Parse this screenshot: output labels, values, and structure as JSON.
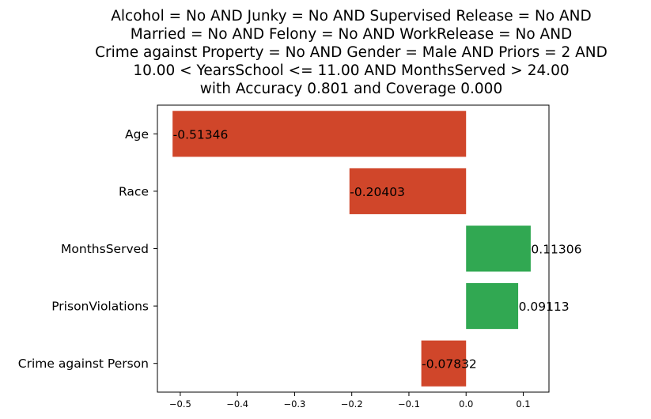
{
  "chart_data": {
    "type": "bar",
    "orientation": "horizontal",
    "title_lines": [
      "Alcohol = No AND Junky = No AND Supervised Release = No AND",
      "Married = No AND Felony = No AND WorkRelease = No AND",
      "Crime against Property = No AND Gender = Male AND Priors = 2 AND",
      "10.00 < YearsSchool <= 11.00 AND MonthsServed > 24.00",
      "with Accuracy 0.801 and Coverage 0.000"
    ],
    "categories": [
      "Age",
      "Race",
      "MonthsServed",
      "PrisonViolations",
      "Crime against Person"
    ],
    "values": [
      -0.51346,
      -0.20403,
      0.11306,
      0.09113,
      -0.07832
    ],
    "value_labels": [
      "-0.51346",
      "-0.20403",
      "0.11306",
      "0.09113",
      "-0.07832"
    ],
    "xticks": [
      -0.5,
      -0.4,
      -0.3,
      -0.2,
      -0.1,
      0.0,
      0.1
    ],
    "xtick_labels": [
      "−0.5",
      "−0.4",
      "−0.3",
      "−0.2",
      "−0.1",
      "0.0",
      "0.1"
    ],
    "xlim": [
      -0.54,
      0.145
    ],
    "xlabel": "",
    "ylabel": "",
    "grid": false,
    "colors": {
      "negative": "#d0462a",
      "positive": "#31a852"
    }
  }
}
